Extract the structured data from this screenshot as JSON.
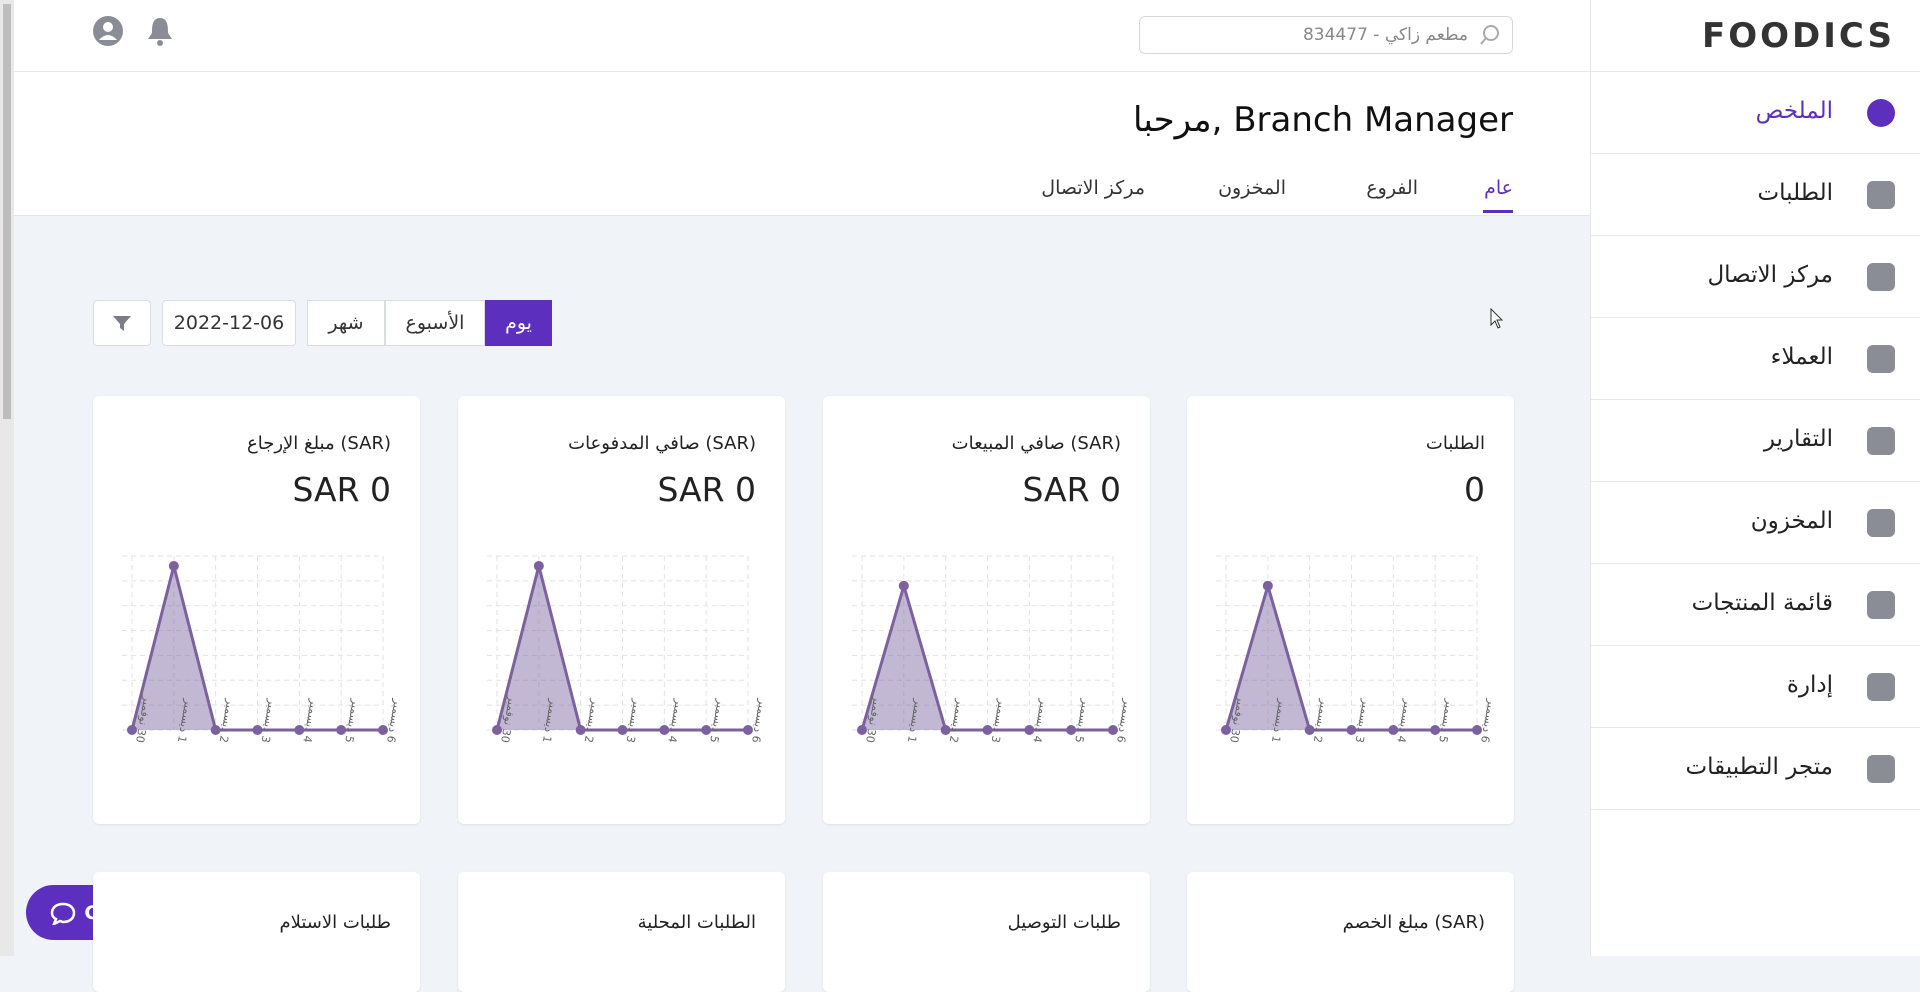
{
  "logo": "FOODICS",
  "header": {
    "search_placeholder": "مطعم زاكي - 834477",
    "greeting": "مرحبا, Branch Manager"
  },
  "tabs": [
    "عام",
    "الفروع",
    "المخزون",
    "مركز الاتصال"
  ],
  "sidebar": {
    "items": [
      "الملخص",
      "الطلبات",
      "مركز الاتصال",
      "العملاء",
      "التقارير",
      "المخزون",
      "قائمة المنتجات",
      "إدارة",
      "متجر التطبيقات"
    ]
  },
  "filters": {
    "periods": [
      "يوم",
      "الأسبوع",
      "شهر"
    ],
    "date": "2022-12-06"
  },
  "cards": [
    {
      "title": "الطلبات",
      "value": "0",
      "chart_data": {
        "type": "area",
        "categories": [
          "30 نوفمبر",
          "1 ديسمبر",
          "2 ديسمبر",
          "3 ديسمبر",
          "4 ديسمبر",
          "5 ديسمبر",
          "6 ديسمبر"
        ],
        "values": [
          0,
          5.8,
          0,
          0,
          0,
          0,
          0
        ],
        "color": "#7b629e",
        "ylim": [
          0,
          7
        ],
        "yticks": [
          0,
          1,
          2,
          3,
          4,
          5,
          6,
          7
        ],
        "grid": true
      }
    },
    {
      "title": "صافي المبيعات (SAR)",
      "value": "SAR 0",
      "chart_data": {
        "type": "area",
        "categories": [
          "30 نوفمبر",
          "1 ديسمبر",
          "2 ديسمبر",
          "3 ديسمبر",
          "4 ديسمبر",
          "5 ديسمبر",
          "6 ديسمبر"
        ],
        "values": [
          0,
          5.8,
          0,
          0,
          0,
          0,
          0
        ],
        "color": "#7b629e",
        "ylim": [
          0,
          7
        ],
        "yticks": [
          0,
          1,
          2,
          3,
          4,
          5,
          6,
          7
        ],
        "grid": true
      }
    },
    {
      "title": "صافي المدفوعات (SAR)",
      "value": "SAR 0",
      "chart_data": {
        "type": "area",
        "categories": [
          "30 نوفمبر",
          "1 ديسمبر",
          "2 ديسمبر",
          "3 ديسمبر",
          "4 ديسمبر",
          "5 ديسمبر",
          "6 ديسمبر"
        ],
        "values": [
          0,
          6.6,
          0,
          0,
          0,
          0,
          0
        ],
        "color": "#7b629e",
        "ylim": [
          0,
          7
        ],
        "yticks": [
          0,
          1,
          2,
          3,
          4,
          5,
          6,
          7
        ],
        "grid": true
      }
    },
    {
      "title": "مبلغ الإرجاع (SAR)",
      "value": "SAR 0",
      "chart_data": {
        "type": "area",
        "categories": [
          "30 نوفمبر",
          "1 ديسمبر",
          "2 ديسمبر",
          "3 ديسمبر",
          "4 ديسمبر",
          "5 ديسمبر",
          "6 ديسمبر"
        ],
        "values": [
          0,
          6.6,
          0,
          0,
          0,
          0,
          0
        ],
        "color": "#7b629e",
        "ylim": [
          0,
          7
        ],
        "yticks": [
          0,
          1,
          2,
          3,
          4,
          5,
          6,
          7
        ],
        "grid": true
      }
    }
  ],
  "cards_row2": [
    "مبلغ الخصم (SAR)",
    "طلبات التوصيل",
    "الطلبات المحلية",
    "طلبات الاستلام"
  ],
  "chat": "Chat"
}
